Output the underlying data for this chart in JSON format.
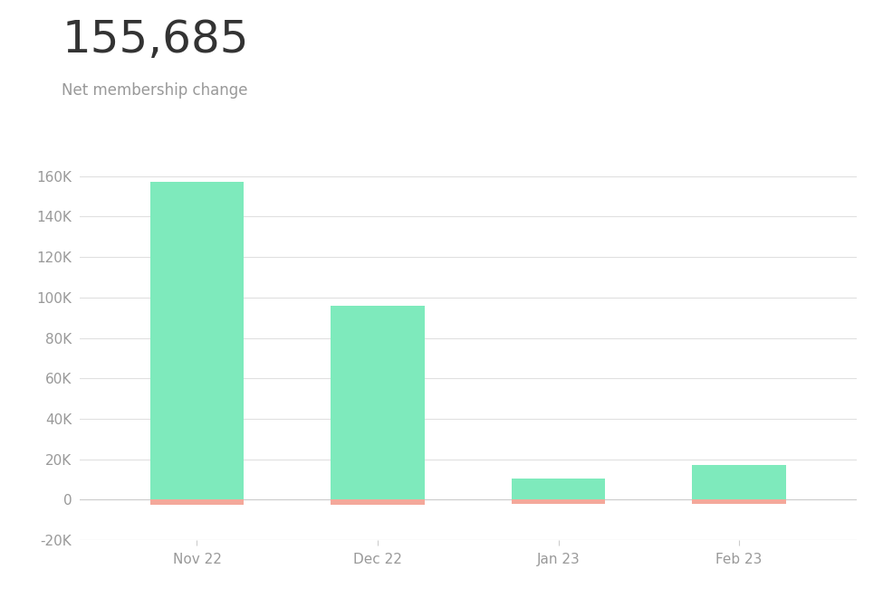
{
  "title_number": "155,685",
  "title_label": "Net membership change",
  "categories": [
    "Nov 22",
    "Dec 22",
    "Jan 23",
    "Feb 23"
  ],
  "positive_values": [
    157000,
    96000,
    10500,
    17000
  ],
  "negative_values": [
    -2500,
    -2500,
    -2000,
    -2000
  ],
  "bar_color_positive": "#7EEABC",
  "bar_color_negative": "#F4A89A",
  "background_color": "#ffffff",
  "ylim_min": -20000,
  "ylim_max": 175000,
  "yticks": [
    -20000,
    0,
    20000,
    40000,
    60000,
    80000,
    100000,
    120000,
    140000,
    160000
  ],
  "grid_color": "#e0e0e0",
  "axis_color": "#cccccc",
  "text_color": "#333333",
  "tick_label_color": "#999999",
  "title_number_fontsize": 36,
  "title_label_fontsize": 12,
  "bar_width": 0.52
}
